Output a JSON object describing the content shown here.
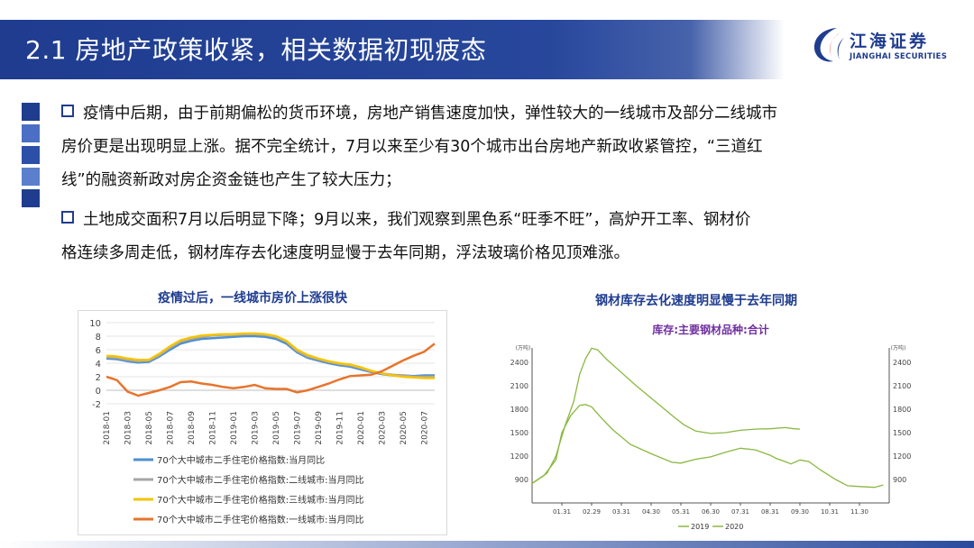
{
  "header": {
    "title": "2.1 房地产政策收紧，相关数据初现疲态",
    "logo_name": "江海证券",
    "logo_sub": "JIANGHAI SECURITIES",
    "bar_color": "#1f3c8f"
  },
  "bullets": [
    {
      "lines": [
        "疫情中后期，由于前期偏松的货币环境，房地产销售速度加快，弹性较大的一线城市及部分二线城市",
        "房价更是出现明显上涨。据不完全统计，7月以来至少有30个城市出台房地产新政收紧管控，“三道红",
        "线”的融资新政对房企资金链也产生了较大压力；"
      ]
    },
    {
      "lines": [
        "土地成交面积7月以后明显下降；9月以来，我们观察到黑色系“旺季不旺”，高炉开工率、钢材价",
        "格连续多周走低，钢材库存去化速度明显慢于去年同期，浮法玻璃价格见顶难涨。"
      ]
    }
  ],
  "chart_data": [
    {
      "type": "line",
      "title": "疫情过后，一线城市房价上涨很快",
      "ylim": [
        -2,
        10
      ],
      "yticks": [
        -2,
        0,
        2,
        4,
        6,
        8,
        10
      ],
      "x": [
        "2018-01",
        "2018-02",
        "2018-03",
        "2018-04",
        "2018-05",
        "2018-06",
        "2018-07",
        "2018-08",
        "2018-09",
        "2018-10",
        "2018-11",
        "2018-12",
        "2019-01",
        "2019-02",
        "2019-03",
        "2019-04",
        "2019-05",
        "2019-06",
        "2019-07",
        "2019-08",
        "2019-09",
        "2019-10",
        "2019-11",
        "2019-12",
        "2020-01",
        "2020-02",
        "2020-03",
        "2020-04",
        "2020-05",
        "2020-06",
        "2020-07",
        "2020-08"
      ],
      "xtick_labels": [
        "2018-01",
        "2018-03",
        "2018-05",
        "2018-07",
        "2018-09",
        "2018-11",
        "2019-01",
        "2019-03",
        "2019-05",
        "2019-07",
        "2019-09",
        "2019-11",
        "2020-01",
        "2020-03",
        "2020-05",
        "2020-07"
      ],
      "series": [
        {
          "name": "70个大中城市二手住宅价格指数:当月同比",
          "color": "#4f8fd0",
          "values": [
            4.7,
            4.6,
            4.3,
            4.1,
            4.2,
            5.0,
            6.0,
            6.9,
            7.3,
            7.6,
            7.7,
            7.8,
            7.9,
            8.0,
            8.0,
            7.9,
            7.6,
            6.9,
            5.6,
            4.8,
            4.4,
            4.0,
            3.7,
            3.5,
            3.1,
            2.7,
            2.4,
            2.2,
            2.2,
            2.1,
            2.2,
            2.2
          ]
        },
        {
          "name": "70个大中城市二手住宅价格指数:二线城市:当月同比",
          "color": "#a6a6a6",
          "values": [
            4.9,
            4.8,
            4.5,
            4.3,
            4.4,
            5.2,
            6.3,
            7.2,
            7.6,
            7.9,
            8.1,
            8.2,
            8.2,
            8.3,
            8.3,
            8.2,
            7.9,
            7.2,
            5.8,
            5.0,
            4.6,
            4.2,
            3.9,
            3.7,
            3.3,
            2.8,
            2.5,
            2.3,
            2.2,
            2.0,
            2.0,
            2.0
          ]
        },
        {
          "name": "70个大中城市二手住宅价格指数:三线城市:当月同比",
          "color": "#f5c400",
          "values": [
            5.1,
            5.0,
            4.7,
            4.5,
            4.5,
            5.4,
            6.5,
            7.4,
            7.8,
            8.1,
            8.2,
            8.3,
            8.3,
            8.4,
            8.4,
            8.3,
            8.0,
            7.3,
            6.0,
            5.2,
            4.7,
            4.3,
            4.0,
            3.8,
            3.4,
            2.9,
            2.5,
            2.2,
            2.0,
            1.9,
            1.8,
            1.8
          ]
        },
        {
          "name": "70个大中城市二手住宅价格指数:一线城市:当月同比",
          "color": "#e8742c",
          "values": [
            2.0,
            1.5,
            -0.2,
            -0.8,
            -0.4,
            0.0,
            0.5,
            1.2,
            1.3,
            1.0,
            0.8,
            0.5,
            0.3,
            0.5,
            0.8,
            0.3,
            0.2,
            0.2,
            -0.3,
            0.0,
            0.5,
            1.0,
            1.6,
            2.1,
            2.2,
            2.3,
            2.8,
            3.6,
            4.4,
            5.1,
            5.7,
            6.9
          ]
        }
      ],
      "legend": "bottom"
    },
    {
      "type": "line",
      "title": "钢材库存去化速度明显慢于去年同期",
      "subtitle": "库存:主要钢材品种:合计",
      "y_unit_left": "(万吨)",
      "y_unit_right": "(万吨)",
      "ylim": [
        600,
        2700
      ],
      "yticks": [
        900,
        1200,
        1500,
        1800,
        2100,
        2400
      ],
      "xtick_labels": [
        "01.31",
        "02.29",
        "03.31",
        "04.30",
        "05.31",
        "06.30",
        "07.31",
        "08.31",
        "09.30",
        "10.31",
        "11.30"
      ],
      "series": [
        {
          "name": "2019",
          "color": "#8ab840",
          "points": [
            [
              0,
              850
            ],
            [
              0.4,
              950
            ],
            [
              0.8,
              1150
            ],
            [
              1.0,
              1500
            ],
            [
              1.3,
              1720
            ],
            [
              1.6,
              1850
            ],
            [
              1.8,
              1860
            ],
            [
              2.0,
              1830
            ],
            [
              2.3,
              1700
            ],
            [
              2.7,
              1540
            ],
            [
              3.3,
              1350
            ],
            [
              4.0,
              1230
            ],
            [
              4.7,
              1120
            ],
            [
              5.0,
              1110
            ],
            [
              5.5,
              1160
            ],
            [
              6.0,
              1190
            ],
            [
              6.5,
              1250
            ],
            [
              7.0,
              1300
            ],
            [
              7.5,
              1280
            ],
            [
              8.0,
              1210
            ],
            [
              8.2,
              1170
            ],
            [
              8.5,
              1130
            ],
            [
              8.7,
              1100
            ],
            [
              9.0,
              1150
            ],
            [
              9.3,
              1130
            ],
            [
              9.7,
              1020
            ],
            [
              10.2,
              900
            ],
            [
              10.6,
              820
            ],
            [
              11.0,
              810
            ],
            [
              11.5,
              800
            ],
            [
              11.8,
              830
            ]
          ]
        },
        {
          "name": "2020",
          "color": "#8ab840",
          "points": [
            [
              0,
              850
            ],
            [
              0.5,
              980
            ],
            [
              0.8,
              1200
            ],
            [
              1.1,
              1580
            ],
            [
              1.4,
              1900
            ],
            [
              1.6,
              2250
            ],
            [
              1.8,
              2450
            ],
            [
              2.0,
              2580
            ],
            [
              2.2,
              2560
            ],
            [
              2.5,
              2440
            ],
            [
              3.0,
              2270
            ],
            [
              3.5,
              2100
            ],
            [
              4.2,
              1880
            ],
            [
              4.7,
              1720
            ],
            [
              5.1,
              1600
            ],
            [
              5.5,
              1520
            ],
            [
              6.0,
              1490
            ],
            [
              6.5,
              1500
            ],
            [
              7.0,
              1530
            ],
            [
              7.5,
              1545
            ],
            [
              8.0,
              1550
            ],
            [
              8.5,
              1565
            ],
            [
              8.8,
              1550
            ],
            [
              9.0,
              1545
            ]
          ]
        }
      ],
      "legend": "bottom"
    }
  ]
}
